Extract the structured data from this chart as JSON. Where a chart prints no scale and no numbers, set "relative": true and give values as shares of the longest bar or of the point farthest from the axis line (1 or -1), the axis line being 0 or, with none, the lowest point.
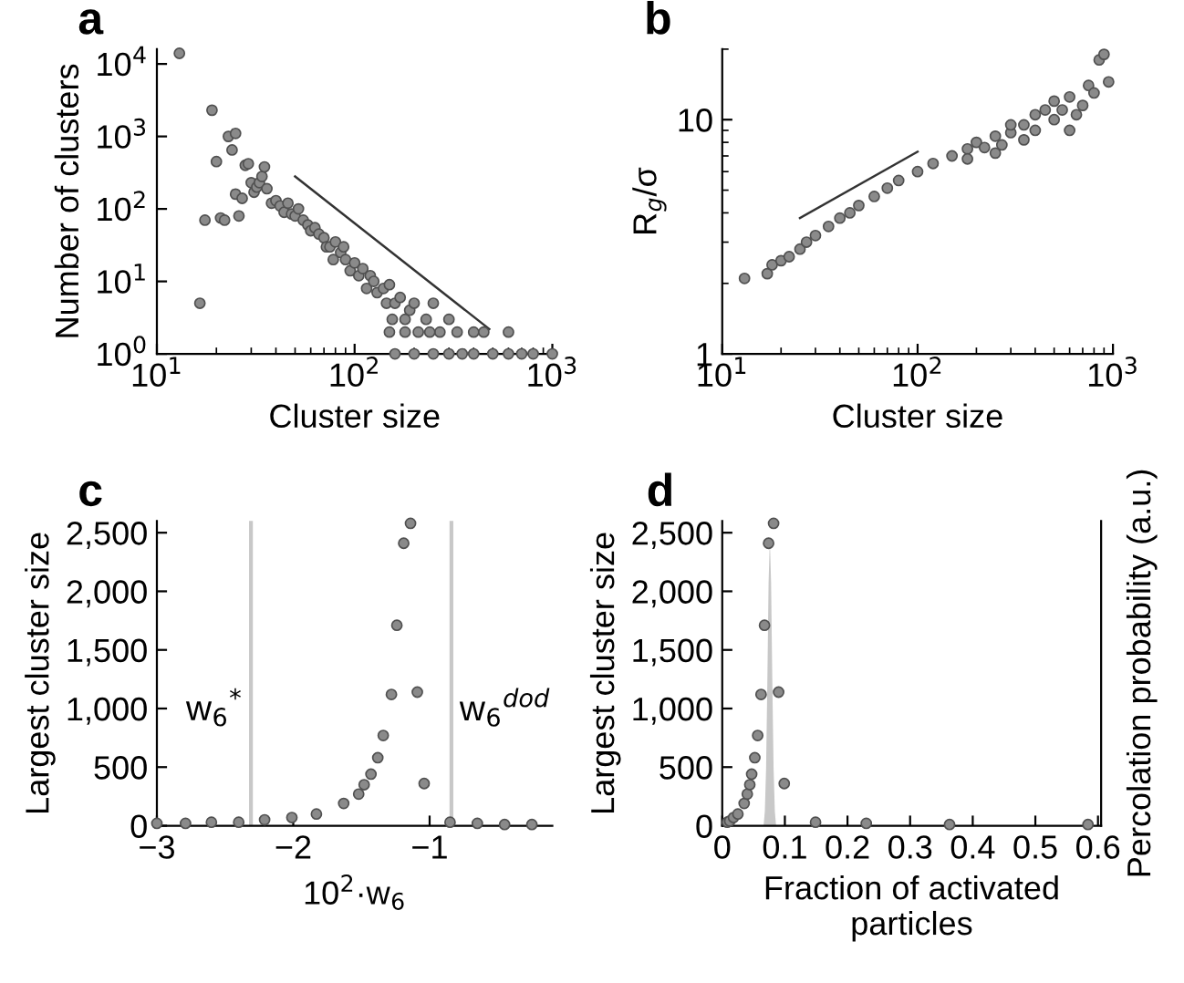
{
  "chart_data": [
    {
      "type": "scatter",
      "title": "a",
      "xlabel": "Cluster size",
      "ylabel": "Number of clusters",
      "log": "xy",
      "xlim": [
        10,
        1000
      ],
      "ylim": [
        1,
        16000
      ],
      "xticks": [
        {
          "value": 10,
          "label": "10$^{1}$"
        },
        {
          "value": 100,
          "label": "10$^{2}$"
        },
        {
          "value": 1000,
          "label": "10$^{3}$"
        }
      ],
      "yticks": [
        {
          "value": 1,
          "label": "10$^{0}$"
        },
        {
          "value": 10,
          "label": "10$^{1}$"
        },
        {
          "value": 100,
          "label": "10$^{2}$"
        },
        {
          "value": 1000,
          "label": "10$^{3}$"
        },
        {
          "value": 10000,
          "label": "10$^{4}$"
        }
      ],
      "series": [
        {
          "marker": "circle",
          "color": "#8a8a8a",
          "x": [
            13,
            16.5,
            17.5,
            19,
            20,
            21,
            22,
            23,
            24,
            25,
            25,
            26,
            27,
            28,
            29,
            30,
            31,
            32,
            33,
            34,
            35,
            36,
            38,
            40,
            42,
            44,
            46,
            48,
            50,
            52,
            55,
            58,
            60,
            63,
            66,
            70,
            72,
            75,
            78,
            80,
            85,
            88,
            90,
            95,
            100,
            105,
            110,
            115,
            120,
            125,
            130,
            140,
            145,
            150,
            155,
            160,
            170,
            180,
            190,
            200,
            210,
            230,
            250,
            270,
            300,
            330,
            400,
            450,
            600,
            150,
            180,
            240,
            160,
            200,
            250,
            300,
            350,
            400,
            500,
            600,
            700,
            800,
            1000
          ],
          "values": [
            14000,
            5,
            70,
            2300,
            450,
            75,
            70,
            1000,
            650,
            1100,
            160,
            80,
            140,
            400,
            420,
            230,
            170,
            200,
            230,
            280,
            380,
            190,
            120,
            130,
            110,
            90,
            120,
            85,
            80,
            100,
            70,
            60,
            50,
            55,
            45,
            40,
            30,
            30,
            20,
            35,
            25,
            30,
            20,
            14,
            18,
            12,
            15,
            8,
            12,
            10,
            7,
            8,
            5,
            9,
            3,
            5,
            6,
            3,
            4,
            5,
            2,
            3,
            5,
            2,
            3,
            2,
            2,
            2,
            2,
            2,
            2,
            2,
            1,
            1,
            1,
            1,
            1,
            1,
            1,
            1,
            1,
            1,
            1
          ]
        },
        {
          "type": "line",
          "marker": "none",
          "color": "#333333",
          "x": [
            50,
            480
          ],
          "values": [
            280,
            2.2
          ]
        }
      ]
    },
    {
      "type": "scatter",
      "title": "b",
      "xlabel": "Cluster size",
      "ylabel": "R$_{g}$/σ",
      "log": "xy",
      "xlim": [
        10,
        1000
      ],
      "ylim": [
        1,
        20
      ],
      "xticks": [
        {
          "value": 10,
          "label": "10$^{1}$"
        },
        {
          "value": 100,
          "label": "10$^{2}$"
        },
        {
          "value": 1000,
          "label": "10$^{3}$"
        }
      ],
      "yticks": [
        1,
        10
      ],
      "series": [
        {
          "marker": "circle",
          "color": "#8a8a8a",
          "x": [
            13,
            17,
            18,
            20,
            22,
            25,
            27,
            30,
            35,
            40,
            45,
            50,
            60,
            70,
            80,
            100,
            120,
            150,
            180,
            200,
            220,
            250,
            250,
            300,
            300,
            350,
            350,
            400,
            400,
            450,
            500,
            500,
            550,
            600,
            650,
            700,
            750,
            800,
            850,
            900,
            950,
            180,
            270,
            600
          ],
          "values": [
            2.1,
            2.2,
            2.4,
            2.5,
            2.6,
            2.8,
            3.0,
            3.2,
            3.5,
            3.8,
            4.0,
            4.3,
            4.7,
            5.1,
            5.5,
            6.0,
            6.5,
            7.0,
            7.5,
            8,
            7.6,
            8.5,
            7.2,
            8.8,
            9.5,
            9.5,
            8.2,
            10.5,
            9.0,
            11,
            10,
            12,
            11,
            12.5,
            10.5,
            11.5,
            14,
            13,
            18,
            19,
            14.5,
            6.8,
            7.8,
            9
          ]
        },
        {
          "type": "line",
          "marker": "none",
          "color": "#333333",
          "x": [
            25,
            100
          ],
          "values": [
            3.8,
            7.3
          ]
        }
      ]
    },
    {
      "type": "scatter",
      "title": "c",
      "xlabel": "10$^{2}$·w$_{6}$",
      "ylabel": "Largest cluster size",
      "xlim": [
        -3,
        -0.1
      ],
      "ylim": [
        0,
        2600
      ],
      "xticks": [
        {
          "value": -3,
          "label": "−3"
        },
        {
          "value": -2,
          "label": "−2"
        },
        {
          "value": -1,
          "label": "−1"
        }
      ],
      "yticks": [
        {
          "value": 0,
          "label": "0"
        },
        {
          "value": 500,
          "label": "500"
        },
        {
          "value": 1000,
          "label": "1,000"
        },
        {
          "value": 1500,
          "label": "1,500"
        },
        {
          "value": 2000,
          "label": "2,000"
        },
        {
          "value": 2500,
          "label": "2,500"
        }
      ],
      "ref_lines": [
        {
          "axis": "x",
          "value": -2.31,
          "label": "w$_{6}$$^{*}$",
          "color": "#c8c8c8"
        },
        {
          "axis": "x",
          "value": -0.84,
          "label": "w$_{6}$$^{dod}$",
          "color": "#c8c8c8"
        }
      ],
      "series": [
        {
          "marker": "circle",
          "color": "#8a8a8a",
          "x": [
            -3,
            -2.79,
            -2.6,
            -2.4,
            -2.21,
            -2.01,
            -1.83,
            -1.63,
            -1.52,
            -1.48,
            -1.43,
            -1.38,
            -1.34,
            -1.28,
            -1.24,
            -1.19,
            -1.14,
            -1.09,
            -1.04,
            -0.85,
            -0.65,
            -0.45,
            -0.25
          ],
          "values": [
            20,
            20,
            30,
            30,
            50,
            70,
            100,
            190,
            270,
            350,
            440,
            580,
            770,
            1120,
            1710,
            2410,
            2580,
            1140,
            360,
            30,
            20,
            10,
            10
          ]
        }
      ]
    },
    {
      "type": "scatter",
      "title": "d",
      "xlabel": "Fraction of activated\nparticles",
      "ylabel": "Largest cluster size",
      "xlim": [
        0,
        0.605
      ],
      "ylim": [
        0,
        2600
      ],
      "xticks": [
        0,
        0.1,
        0.2,
        0.3,
        0.4,
        0.5,
        0.6
      ],
      "yticks": [
        {
          "value": 0,
          "label": "0"
        },
        {
          "value": 500,
          "label": "500"
        },
        {
          "value": 1000,
          "label": "1,000"
        },
        {
          "value": 1500,
          "label": "1,500"
        },
        {
          "value": 2000,
          "label": "2,000"
        },
        {
          "value": 2500,
          "label": "2,500"
        }
      ],
      "series": [
        {
          "marker": "circle",
          "color": "#8a8a8a",
          "x": [
            0.008,
            0.012,
            0.018,
            0.025,
            0.035,
            0.04,
            0.044,
            0.047,
            0.052,
            0.0566,
            0.062,
            0.0675,
            0.074,
            0.082,
            0.09,
            0.099,
            0.149,
            0.23,
            0.363,
            0.584
          ],
          "values": [
            30,
            40,
            70,
            100,
            190,
            270,
            350,
            440,
            580,
            770,
            1120,
            1710,
            2410,
            2580,
            1140,
            360,
            30,
            20,
            10,
            10
          ]
        }
      ]
    },
    {
      "type": "area",
      "relative": true,
      "y2label": "Percolation probability (a.u.)",
      "xlim": [
        0,
        0.605
      ],
      "tick_labels": false,
      "series": [
        {
          "color": "#c8c8c8",
          "x": [
            0.066,
            0.068,
            0.07,
            0.072,
            0.074,
            0.076,
            0.078,
            0.08,
            0.082,
            0.084,
            0.086
          ],
          "values": [
            0,
            0.05,
            0.2,
            0.5,
            0.85,
            1,
            0.85,
            0.5,
            0.2,
            0.05,
            0
          ]
        }
      ]
    }
  ]
}
